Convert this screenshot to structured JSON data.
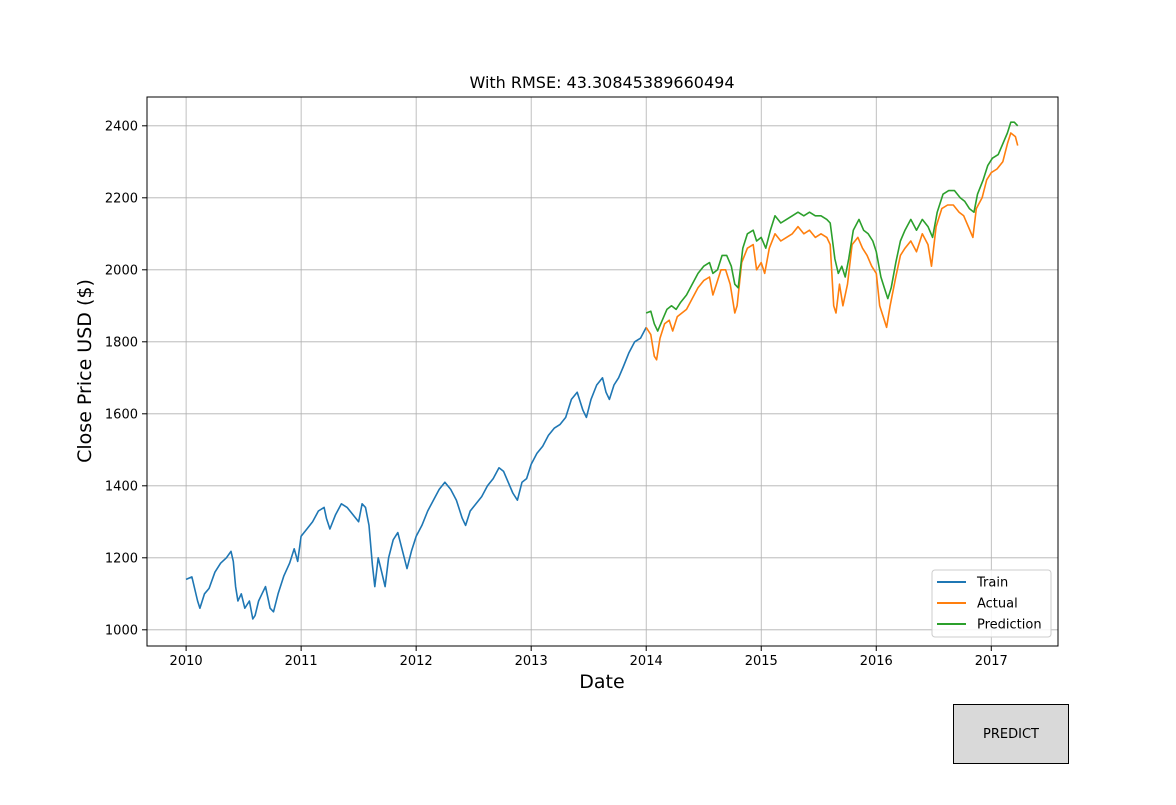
{
  "predict_button": {
    "label": "PREDICT"
  },
  "chart_data": {
    "type": "line",
    "title": "With RMSE: 43.30845389660494",
    "xlabel": "Date",
    "ylabel": "Close Price USD ($)",
    "xlim": [
      2009.66,
      2017.58
    ],
    "ylim": [
      955,
      2480
    ],
    "x_ticks": [
      2010,
      2011,
      2012,
      2013,
      2014,
      2015,
      2016,
      2017
    ],
    "x_tick_labels": [
      "2010",
      "2011",
      "2012",
      "2013",
      "2014",
      "2015",
      "2016",
      "2017"
    ],
    "y_ticks": [
      1000,
      1200,
      1400,
      1600,
      1800,
      2000,
      2200,
      2400
    ],
    "y_tick_labels": [
      "1000",
      "1200",
      "1400",
      "1600",
      "1800",
      "2000",
      "2200",
      "2400"
    ],
    "grid": true,
    "legend_position": "bottom-right",
    "series": [
      {
        "name": "Train",
        "color": "#1f77b4",
        "points": [
          [
            2010.0,
            1140
          ],
          [
            2010.05,
            1147
          ],
          [
            2010.1,
            1080
          ],
          [
            2010.12,
            1060
          ],
          [
            2010.16,
            1100
          ],
          [
            2010.2,
            1115
          ],
          [
            2010.25,
            1160
          ],
          [
            2010.3,
            1185
          ],
          [
            2010.35,
            1200
          ],
          [
            2010.39,
            1218
          ],
          [
            2010.41,
            1190
          ],
          [
            2010.43,
            1120
          ],
          [
            2010.45,
            1080
          ],
          [
            2010.48,
            1100
          ],
          [
            2010.51,
            1060
          ],
          [
            2010.55,
            1080
          ],
          [
            2010.58,
            1030
          ],
          [
            2010.6,
            1040
          ],
          [
            2010.63,
            1080
          ],
          [
            2010.66,
            1100
          ],
          [
            2010.69,
            1120
          ],
          [
            2010.73,
            1060
          ],
          [
            2010.76,
            1050
          ],
          [
            2010.8,
            1100
          ],
          [
            2010.85,
            1150
          ],
          [
            2010.9,
            1185
          ],
          [
            2010.94,
            1225
          ],
          [
            2010.97,
            1190
          ],
          [
            2011.0,
            1260
          ],
          [
            2011.05,
            1280
          ],
          [
            2011.1,
            1300
          ],
          [
            2011.15,
            1330
          ],
          [
            2011.2,
            1340
          ],
          [
            2011.22,
            1310
          ],
          [
            2011.25,
            1280
          ],
          [
            2011.3,
            1320
          ],
          [
            2011.35,
            1350
          ],
          [
            2011.4,
            1340
          ],
          [
            2011.45,
            1320
          ],
          [
            2011.5,
            1300
          ],
          [
            2011.53,
            1350
          ],
          [
            2011.56,
            1340
          ],
          [
            2011.59,
            1290
          ],
          [
            2011.62,
            1180
          ],
          [
            2011.64,
            1120
          ],
          [
            2011.67,
            1200
          ],
          [
            2011.7,
            1160
          ],
          [
            2011.73,
            1120
          ],
          [
            2011.76,
            1200
          ],
          [
            2011.8,
            1250
          ],
          [
            2011.84,
            1270
          ],
          [
            2011.88,
            1220
          ],
          [
            2011.92,
            1170
          ],
          [
            2011.96,
            1220
          ],
          [
            2012.0,
            1260
          ],
          [
            2012.05,
            1290
          ],
          [
            2012.1,
            1330
          ],
          [
            2012.15,
            1360
          ],
          [
            2012.2,
            1390
          ],
          [
            2012.25,
            1410
          ],
          [
            2012.3,
            1390
          ],
          [
            2012.35,
            1360
          ],
          [
            2012.4,
            1310
          ],
          [
            2012.43,
            1290
          ],
          [
            2012.47,
            1330
          ],
          [
            2012.52,
            1350
          ],
          [
            2012.57,
            1370
          ],
          [
            2012.62,
            1400
          ],
          [
            2012.67,
            1420
          ],
          [
            2012.72,
            1450
          ],
          [
            2012.76,
            1440
          ],
          [
            2012.8,
            1410
          ],
          [
            2012.84,
            1380
          ],
          [
            2012.88,
            1360
          ],
          [
            2012.92,
            1410
          ],
          [
            2012.96,
            1420
          ],
          [
            2013.0,
            1460
          ],
          [
            2013.05,
            1490
          ],
          [
            2013.1,
            1510
          ],
          [
            2013.15,
            1540
          ],
          [
            2013.2,
            1560
          ],
          [
            2013.25,
            1570
          ],
          [
            2013.3,
            1590
          ],
          [
            2013.35,
            1640
          ],
          [
            2013.4,
            1660
          ],
          [
            2013.45,
            1610
          ],
          [
            2013.48,
            1590
          ],
          [
            2013.52,
            1640
          ],
          [
            2013.57,
            1680
          ],
          [
            2013.62,
            1700
          ],
          [
            2013.65,
            1660
          ],
          [
            2013.68,
            1640
          ],
          [
            2013.72,
            1680
          ],
          [
            2013.76,
            1700
          ],
          [
            2013.8,
            1730
          ],
          [
            2013.85,
            1770
          ],
          [
            2013.9,
            1800
          ],
          [
            2013.95,
            1810
          ],
          [
            2014.0,
            1840
          ]
        ]
      },
      {
        "name": "Actual",
        "color": "#ff7f0e",
        "points": [
          [
            2014.0,
            1840
          ],
          [
            2014.04,
            1820
          ],
          [
            2014.07,
            1760
          ],
          [
            2014.09,
            1750
          ],
          [
            2014.12,
            1810
          ],
          [
            2014.16,
            1850
          ],
          [
            2014.2,
            1860
          ],
          [
            2014.23,
            1830
          ],
          [
            2014.27,
            1870
          ],
          [
            2014.31,
            1880
          ],
          [
            2014.35,
            1890
          ],
          [
            2014.4,
            1920
          ],
          [
            2014.45,
            1950
          ],
          [
            2014.5,
            1970
          ],
          [
            2014.55,
            1980
          ],
          [
            2014.58,
            1930
          ],
          [
            2014.61,
            1960
          ],
          [
            2014.65,
            2000
          ],
          [
            2014.69,
            2000
          ],
          [
            2014.73,
            1960
          ],
          [
            2014.77,
            1880
          ],
          [
            2014.79,
            1900
          ],
          [
            2014.83,
            2020
          ],
          [
            2014.88,
            2060
          ],
          [
            2014.93,
            2070
          ],
          [
            2014.96,
            2000
          ],
          [
            2015.0,
            2020
          ],
          [
            2015.03,
            1990
          ],
          [
            2015.07,
            2060
          ],
          [
            2015.12,
            2100
          ],
          [
            2015.17,
            2080
          ],
          [
            2015.22,
            2090
          ],
          [
            2015.27,
            2100
          ],
          [
            2015.32,
            2120
          ],
          [
            2015.37,
            2100
          ],
          [
            2015.42,
            2110
          ],
          [
            2015.47,
            2090
          ],
          [
            2015.52,
            2100
          ],
          [
            2015.57,
            2090
          ],
          [
            2015.6,
            2070
          ],
          [
            2015.63,
            1900
          ],
          [
            2015.65,
            1880
          ],
          [
            2015.68,
            1960
          ],
          [
            2015.71,
            1900
          ],
          [
            2015.75,
            1960
          ],
          [
            2015.79,
            2070
          ],
          [
            2015.84,
            2090
          ],
          [
            2015.88,
            2060
          ],
          [
            2015.92,
            2040
          ],
          [
            2015.96,
            2010
          ],
          [
            2016.0,
            1990
          ],
          [
            2016.03,
            1900
          ],
          [
            2016.06,
            1870
          ],
          [
            2016.09,
            1840
          ],
          [
            2016.12,
            1900
          ],
          [
            2016.17,
            1980
          ],
          [
            2016.21,
            2040
          ],
          [
            2016.25,
            2060
          ],
          [
            2016.3,
            2080
          ],
          [
            2016.35,
            2050
          ],
          [
            2016.4,
            2100
          ],
          [
            2016.45,
            2070
          ],
          [
            2016.48,
            2010
          ],
          [
            2016.52,
            2120
          ],
          [
            2016.57,
            2170
          ],
          [
            2016.62,
            2180
          ],
          [
            2016.67,
            2180
          ],
          [
            2016.72,
            2160
          ],
          [
            2016.76,
            2150
          ],
          [
            2016.8,
            2120
          ],
          [
            2016.84,
            2090
          ],
          [
            2016.87,
            2170
          ],
          [
            2016.92,
            2200
          ],
          [
            2016.96,
            2250
          ],
          [
            2017.0,
            2270
          ],
          [
            2017.05,
            2280
          ],
          [
            2017.1,
            2300
          ],
          [
            2017.14,
            2350
          ],
          [
            2017.17,
            2380
          ],
          [
            2017.21,
            2370
          ],
          [
            2017.23,
            2345
          ]
        ]
      },
      {
        "name": "Prediction",
        "color": "#2ca02c",
        "points": [
          [
            2014.0,
            1880
          ],
          [
            2014.04,
            1885
          ],
          [
            2014.07,
            1850
          ],
          [
            2014.1,
            1830
          ],
          [
            2014.14,
            1860
          ],
          [
            2014.18,
            1890
          ],
          [
            2014.22,
            1900
          ],
          [
            2014.26,
            1890
          ],
          [
            2014.3,
            1910
          ],
          [
            2014.35,
            1930
          ],
          [
            2014.4,
            1960
          ],
          [
            2014.45,
            1990
          ],
          [
            2014.5,
            2010
          ],
          [
            2014.55,
            2020
          ],
          [
            2014.58,
            1990
          ],
          [
            2014.62,
            2000
          ],
          [
            2014.66,
            2040
          ],
          [
            2014.7,
            2040
          ],
          [
            2014.74,
            2010
          ],
          [
            2014.77,
            1960
          ],
          [
            2014.8,
            1950
          ],
          [
            2014.84,
            2060
          ],
          [
            2014.88,
            2100
          ],
          [
            2014.93,
            2110
          ],
          [
            2014.96,
            2080
          ],
          [
            2015.0,
            2090
          ],
          [
            2015.04,
            2060
          ],
          [
            2015.08,
            2110
          ],
          [
            2015.12,
            2150
          ],
          [
            2015.17,
            2130
          ],
          [
            2015.22,
            2140
          ],
          [
            2015.27,
            2150
          ],
          [
            2015.32,
            2160
          ],
          [
            2015.37,
            2150
          ],
          [
            2015.42,
            2160
          ],
          [
            2015.47,
            2150
          ],
          [
            2015.52,
            2150
          ],
          [
            2015.57,
            2140
          ],
          [
            2015.6,
            2130
          ],
          [
            2015.64,
            2030
          ],
          [
            2015.67,
            1990
          ],
          [
            2015.7,
            2010
          ],
          [
            2015.73,
            1980
          ],
          [
            2015.76,
            2030
          ],
          [
            2015.8,
            2110
          ],
          [
            2015.85,
            2140
          ],
          [
            2015.89,
            2110
          ],
          [
            2015.93,
            2100
          ],
          [
            2015.97,
            2080
          ],
          [
            2016.0,
            2050
          ],
          [
            2016.04,
            1980
          ],
          [
            2016.07,
            1950
          ],
          [
            2016.1,
            1920
          ],
          [
            2016.13,
            1950
          ],
          [
            2016.17,
            2020
          ],
          [
            2016.21,
            2080
          ],
          [
            2016.25,
            2110
          ],
          [
            2016.3,
            2140
          ],
          [
            2016.35,
            2110
          ],
          [
            2016.4,
            2140
          ],
          [
            2016.45,
            2120
          ],
          [
            2016.49,
            2090
          ],
          [
            2016.53,
            2160
          ],
          [
            2016.58,
            2210
          ],
          [
            2016.63,
            2220
          ],
          [
            2016.68,
            2220
          ],
          [
            2016.73,
            2200
          ],
          [
            2016.77,
            2190
          ],
          [
            2016.81,
            2170
          ],
          [
            2016.85,
            2160
          ],
          [
            2016.88,
            2210
          ],
          [
            2016.93,
            2250
          ],
          [
            2016.97,
            2290
          ],
          [
            2017.01,
            2310
          ],
          [
            2017.06,
            2320
          ],
          [
            2017.1,
            2350
          ],
          [
            2017.14,
            2380
          ],
          [
            2017.17,
            2410
          ],
          [
            2017.2,
            2410
          ],
          [
            2017.23,
            2400
          ]
        ]
      }
    ]
  }
}
